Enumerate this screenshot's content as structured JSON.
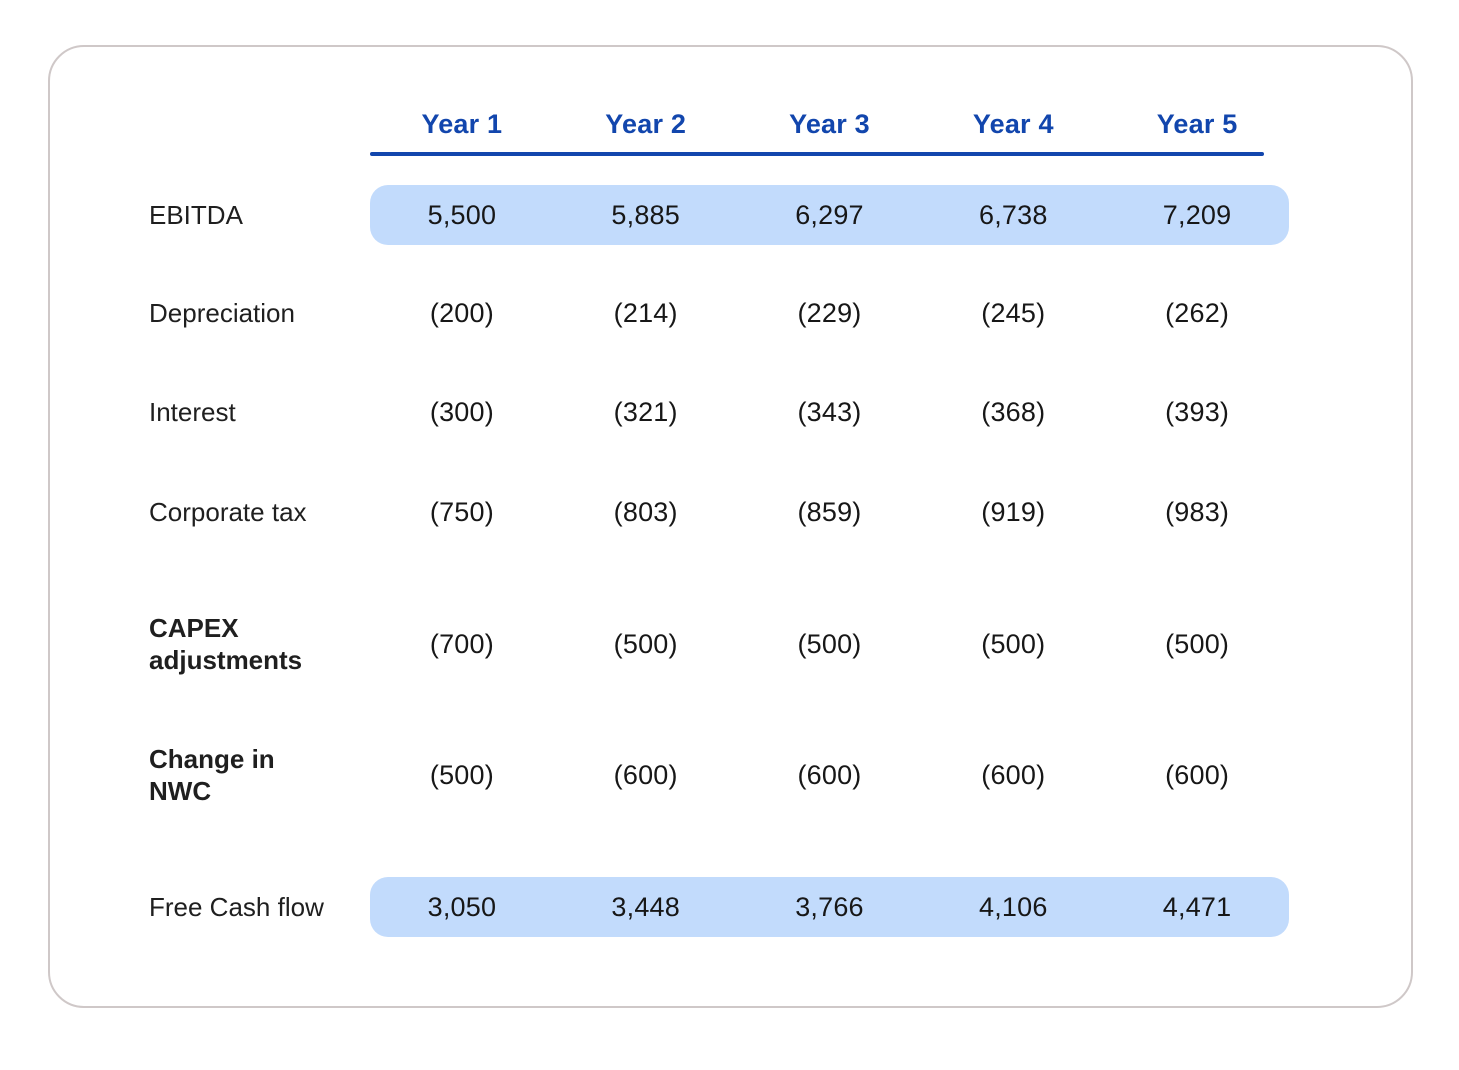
{
  "header": {
    "columns": [
      "Year 1",
      "Year 2",
      "Year 3",
      "Year 4",
      "Year 5"
    ]
  },
  "table": {
    "rows": [
      {
        "label": "EBITDA",
        "values": [
          "5,500",
          "5,885",
          "6,297",
          "6,738",
          "7,209"
        ]
      },
      {
        "label": "Depreciation",
        "values": [
          "(200)",
          "(214)",
          "(229)",
          "(245)",
          "(262)"
        ]
      },
      {
        "label": "Interest",
        "values": [
          "(300)",
          "(321)",
          "(343)",
          "(368)",
          "(393)"
        ]
      },
      {
        "label": "Corporate tax",
        "values": [
          "(750)",
          "(803)",
          "(859)",
          "(919)",
          "(983)"
        ]
      },
      {
        "label": "CAPEX\nadjustments",
        "values": [
          "(700)",
          "(500)",
          "(500)",
          "(500)",
          "(500)"
        ]
      },
      {
        "label": "Change in\nNWC",
        "values": [
          "(500)",
          "(600)",
          "(600)",
          "(600)",
          "(600)"
        ]
      },
      {
        "label": "Free Cash flow",
        "values": [
          "3,050",
          "3,448",
          "3,766",
          "4,106",
          "4,471"
        ]
      }
    ]
  },
  "colors": {
    "header_blue": "#1246ad",
    "row_highlight_blue": "#c2dbfc",
    "card_border": "#cfc8c8",
    "text_dark": "#1c1c1c"
  },
  "chart_data": {
    "type": "table",
    "title": "",
    "columns": [
      "Year 1",
      "Year 2",
      "Year 3",
      "Year 4",
      "Year 5"
    ],
    "rows": [
      {
        "label": "EBITDA",
        "values": [
          5500,
          5885,
          6297,
          6738,
          7209
        ],
        "highlighted": true
      },
      {
        "label": "Depreciation",
        "values": [
          -200,
          -214,
          -229,
          -245,
          -262
        ],
        "highlighted": false
      },
      {
        "label": "Interest",
        "values": [
          -300,
          -321,
          -343,
          -368,
          -393
        ],
        "highlighted": false
      },
      {
        "label": "Corporate tax",
        "values": [
          -750,
          -803,
          -859,
          -919,
          -983
        ],
        "highlighted": false
      },
      {
        "label": "CAPEX adjustments",
        "values": [
          -700,
          -500,
          -500,
          -500,
          -500
        ],
        "highlighted": false
      },
      {
        "label": "Change in NWC",
        "values": [
          -500,
          -600,
          -600,
          -600,
          -600
        ],
        "highlighted": false
      },
      {
        "label": "Free Cash flow",
        "values": [
          3050,
          3448,
          3766,
          4106,
          4471
        ],
        "highlighted": true
      }
    ]
  }
}
